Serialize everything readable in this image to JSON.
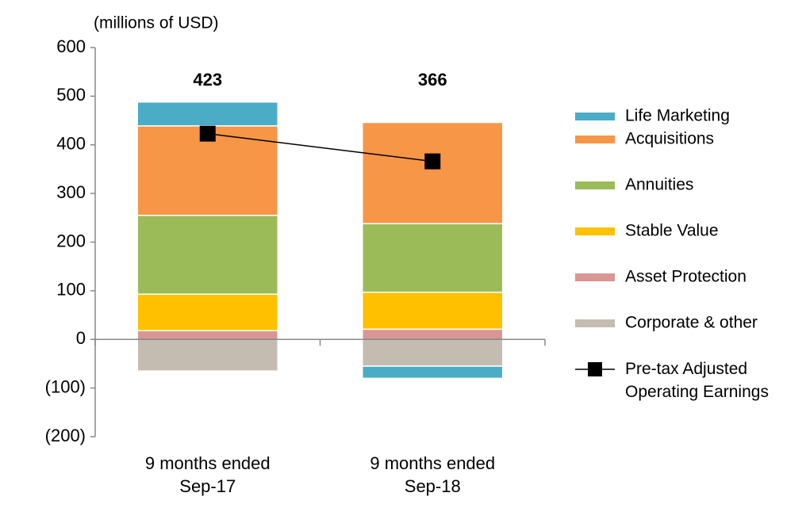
{
  "chart_data": {
    "type": "bar",
    "stacked": true,
    "subtitle": "(millions of USD)",
    "categories": [
      "9 months ended Sep-17",
      "9 months ended Sep-18"
    ],
    "series": [
      {
        "name": "Life Marketing",
        "color": "#4bacc6",
        "values": [
          49,
          -25
        ]
      },
      {
        "name": "Acquisitions",
        "color": "#f79646",
        "values": [
          184,
          208
        ]
      },
      {
        "name": "Annuities",
        "color": "#9bbb59",
        "values": [
          162,
          141
        ]
      },
      {
        "name": "Stable Value",
        "color": "#ffc000",
        "values": [
          75,
          76
        ]
      },
      {
        "name": "Asset Protection",
        "color": "#d99694",
        "values": [
          18,
          21
        ]
      },
      {
        "name": "Corporate & other",
        "color": "#c4bcb1",
        "values": [
          -65,
          -55
        ]
      },
      {
        "name": "Pre-tax Adjusted Operating Earnings",
        "color": "#000000",
        "type": "line",
        "values": [
          423,
          366
        ]
      }
    ],
    "ylim": [
      -200,
      600
    ],
    "yticks": [
      {
        "value": -200,
        "label": "(200)"
      },
      {
        "value": -100,
        "label": "(100)"
      },
      0,
      100,
      200,
      300,
      400,
      500,
      600
    ],
    "grid": false,
    "legend": "right"
  }
}
